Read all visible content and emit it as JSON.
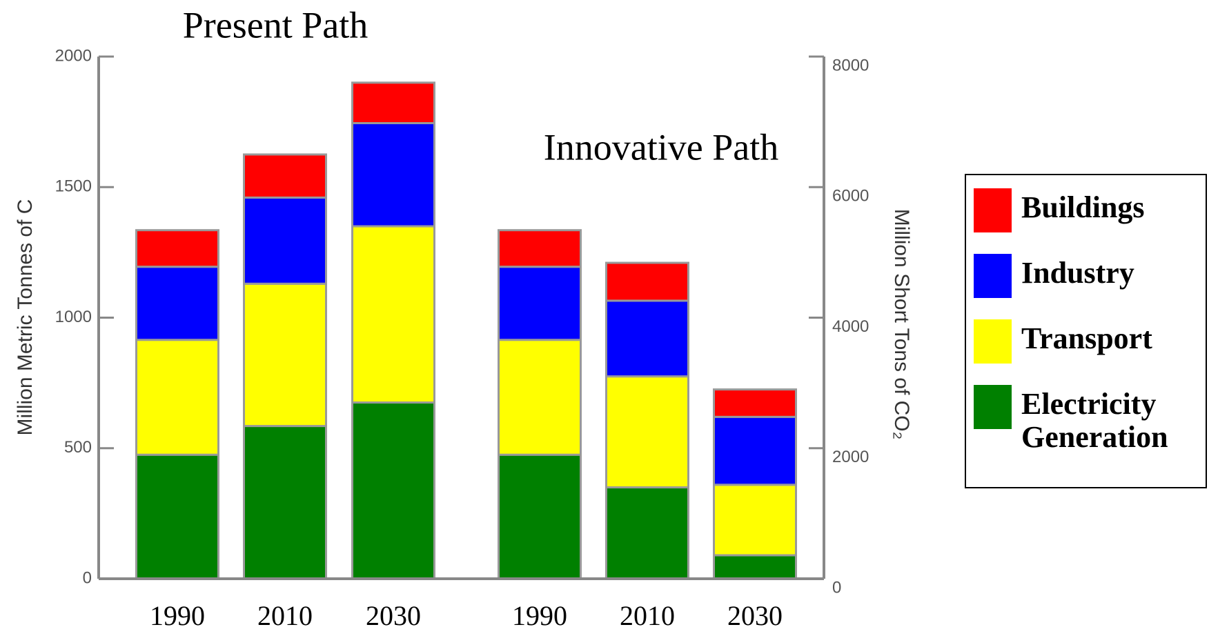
{
  "chart_data": {
    "type": "stacked_bar",
    "annotations": [
      "Present Path",
      "Innovative Path"
    ],
    "ylabel": "Million Metric Tonnes of C",
    "y2label": "Million Short Tons of CO₂",
    "categories": [
      "1990",
      "2010",
      "2030",
      "1990",
      "2010",
      "2030"
    ],
    "series": [
      {
        "name": "Buildings",
        "color": "#ff0000",
        "values": [
          140,
          165,
          155,
          140,
          145,
          105
        ]
      },
      {
        "name": "Industry",
        "color": "#0000ff",
        "values": [
          280,
          330,
          395,
          280,
          290,
          260
        ]
      },
      {
        "name": "Transport",
        "color": "#ffff00",
        "values": [
          440,
          545,
          675,
          440,
          425,
          270
        ]
      },
      {
        "name": "Electricity Generation",
        "color": "#008000",
        "values": [
          475,
          585,
          675,
          475,
          350,
          90
        ]
      }
    ],
    "ylim": [
      0,
      2000
    ],
    "yticks": [
      0,
      500,
      1000,
      1500,
      2000
    ],
    "y2lim": [
      0,
      8000
    ],
    "y2ticks": [
      0,
      2000,
      4000,
      6000,
      8000
    ],
    "legend": "right"
  }
}
